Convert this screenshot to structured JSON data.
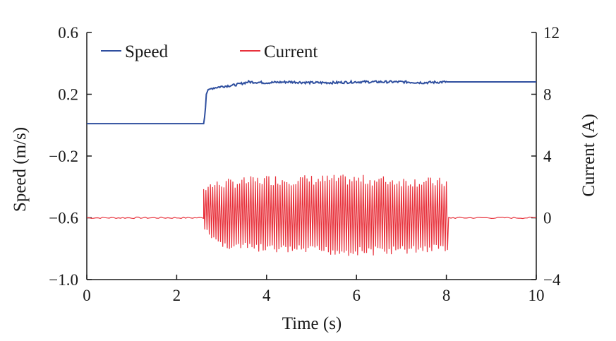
{
  "chart_data": {
    "type": "line",
    "xlabel": "Time (s)",
    "ylabel_left": "Speed (m/s)",
    "ylabel_right": "Current (A)",
    "xlim": [
      0,
      10
    ],
    "ylim_left": [
      -1.0,
      0.6
    ],
    "ylim_right": [
      -4,
      12
    ],
    "xticks": [
      0,
      2,
      4,
      6,
      8,
      10
    ],
    "xtick_labels": [
      "0",
      "2",
      "4",
      "6",
      "8",
      "10"
    ],
    "yticks_left": [
      0.6,
      0.2,
      -0.2,
      -0.6,
      -1.0
    ],
    "ytick_labels_left": [
      "0.6",
      "0.2",
      "−0.2",
      "−0.6",
      "−1.0"
    ],
    "yticks_right": [
      12,
      8,
      4,
      0,
      -4
    ],
    "ytick_labels_right": [
      "12",
      "8",
      "4",
      "0",
      "−4"
    ],
    "grid": false,
    "legend_position": "top-left",
    "series": [
      {
        "name": "Speed",
        "axis": "left",
        "color": "#2f4f9f",
        "points": [
          [
            0,
            0.01
          ],
          [
            2.6,
            0.01
          ],
          [
            2.63,
            0.07
          ],
          [
            2.66,
            0.2
          ],
          [
            2.7,
            0.23
          ],
          [
            2.8,
            0.24
          ],
          [
            3.0,
            0.25
          ],
          [
            3.3,
            0.26
          ],
          [
            3.6,
            0.28
          ],
          [
            4.0,
            0.275
          ],
          [
            4.5,
            0.28
          ],
          [
            5.0,
            0.275
          ],
          [
            5.5,
            0.275
          ],
          [
            6.0,
            0.28
          ],
          [
            6.5,
            0.28
          ],
          [
            7.0,
            0.28
          ],
          [
            7.5,
            0.275
          ],
          [
            8.0,
            0.28
          ],
          [
            10.0,
            0.28
          ]
        ]
      },
      {
        "name": "Current",
        "axis": "right",
        "color": "#e8323c",
        "baseline": 0,
        "oscillation_window": [
          2.6,
          8.05
        ],
        "oscillation_upper_envelope": [
          [
            2.6,
            2.3
          ],
          [
            3.0,
            2.5
          ],
          [
            4.0,
            2.8
          ],
          [
            5.0,
            2.8
          ],
          [
            6.0,
            2.8
          ],
          [
            7.0,
            2.7
          ],
          [
            8.0,
            2.6
          ]
        ],
        "oscillation_lower_envelope": [
          [
            2.6,
            -0.8
          ],
          [
            3.0,
            -2.0
          ],
          [
            4.0,
            -2.3
          ],
          [
            5.0,
            -2.4
          ],
          [
            6.0,
            -2.5
          ],
          [
            7.0,
            -2.4
          ],
          [
            8.0,
            -2.2
          ]
        ]
      }
    ]
  }
}
